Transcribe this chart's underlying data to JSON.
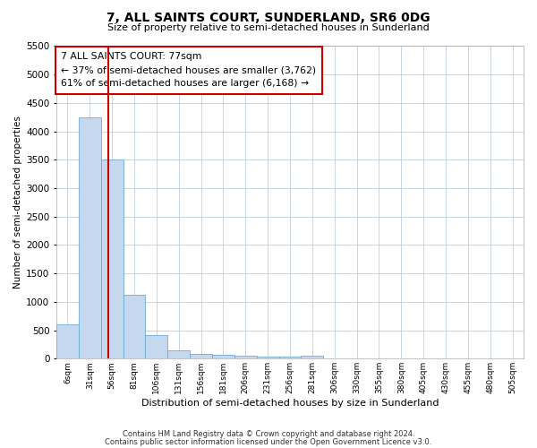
{
  "title_line1": "7, ALL SAINTS COURT, SUNDERLAND, SR6 0DG",
  "title_line2": "Size of property relative to semi-detached houses in Sunderland",
  "xlabel": "Distribution of semi-detached houses by size in Sunderland",
  "ylabel": "Number of semi-detached properties",
  "footnote1": "Contains HM Land Registry data © Crown copyright and database right 2024.",
  "footnote2": "Contains public sector information licensed under the Open Government Licence v3.0.",
  "annotation_title": "7 ALL SAINTS COURT: 77sqm",
  "annotation_line2": "← 37% of semi-detached houses are smaller (3,762)",
  "annotation_line3": "61% of semi-detached houses are larger (6,168) →",
  "property_size_bin": 1,
  "vline_x": 2,
  "bar_categories": [
    "6sqm",
    "31sqm",
    "56sqm",
    "81sqm",
    "106sqm",
    "131sqm",
    "156sqm",
    "181sqm",
    "206sqm",
    "231sqm",
    "256sqm",
    "281sqm",
    "306sqm",
    "330sqm",
    "355sqm",
    "380sqm",
    "405sqm",
    "430sqm",
    "455sqm",
    "480sqm",
    "505sqm"
  ],
  "bar_heights": [
    600,
    4250,
    3500,
    1120,
    420,
    150,
    80,
    60,
    50,
    40,
    30,
    55,
    0,
    0,
    0,
    0,
    0,
    0,
    0,
    0,
    0
  ],
  "bar_color": "#c5d8ee",
  "bar_edge_color": "#6baed6",
  "ylim": [
    0,
    5500
  ],
  "yticks": [
    0,
    500,
    1000,
    1500,
    2000,
    2500,
    3000,
    3500,
    4000,
    4500,
    5000,
    5500
  ],
  "vline_color": "#cc0000",
  "annotation_box_edgecolor": "#cc0000",
  "background_color": "#ffffff",
  "grid_color": "#c8d4e0"
}
